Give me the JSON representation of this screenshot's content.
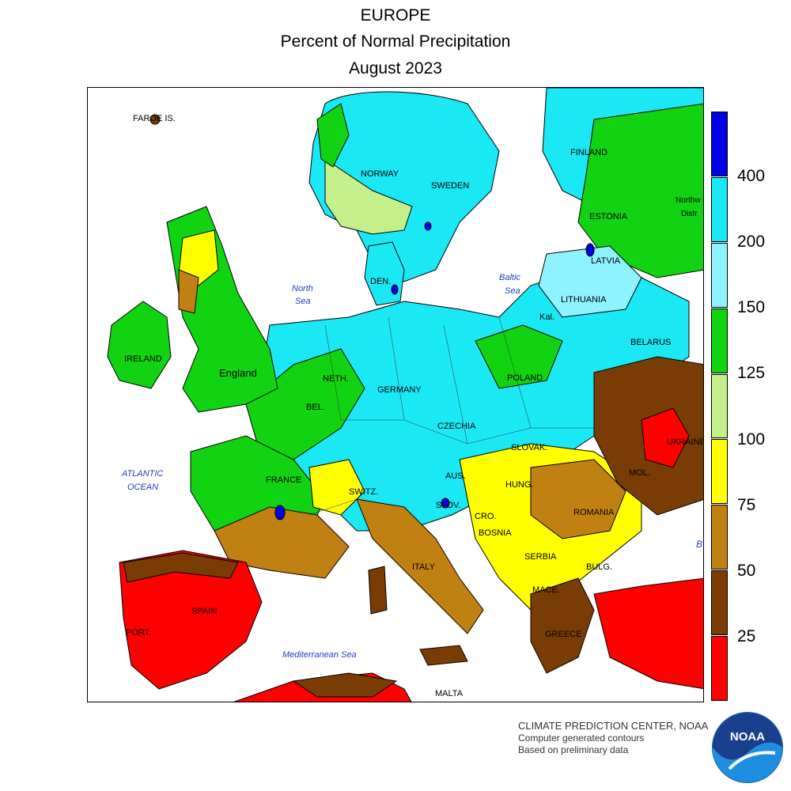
{
  "header": {
    "line1": "EUROPE",
    "line2": "Percent of Normal Precipitation",
    "line3": "August 2023"
  },
  "map": {
    "land_labels": [
      {
        "id": "faroe",
        "text": "FAROE IS."
      },
      {
        "id": "norway",
        "text": "NORWAY"
      },
      {
        "id": "sweden",
        "text": "SWEDEN"
      },
      {
        "id": "finland",
        "text": "FINLAND"
      },
      {
        "id": "estonia",
        "text": "ESTONIA"
      },
      {
        "id": "northwest-district",
        "text": "Northw"
      },
      {
        "id": "northwest-district-2",
        "text": "Distr"
      },
      {
        "id": "latvia",
        "text": "LATVIA"
      },
      {
        "id": "lithuania",
        "text": "LITHUANIA"
      },
      {
        "id": "kal",
        "text": "Kal."
      },
      {
        "id": "denmark",
        "text": "DEN."
      },
      {
        "id": "ireland",
        "text": "IRELAND"
      },
      {
        "id": "england",
        "text": "England"
      },
      {
        "id": "netherlands",
        "text": "NETH."
      },
      {
        "id": "belgium",
        "text": "BEL."
      },
      {
        "id": "germany",
        "text": "GERMANY"
      },
      {
        "id": "poland",
        "text": "POLAND"
      },
      {
        "id": "belarus",
        "text": "BELARUS"
      },
      {
        "id": "czechia",
        "text": "CZECHIA"
      },
      {
        "id": "slovakia",
        "text": "SLOVAK."
      },
      {
        "id": "ukraine",
        "text": "UKRAINE"
      },
      {
        "id": "moldova",
        "text": "MOL."
      },
      {
        "id": "france",
        "text": "FRANCE"
      },
      {
        "id": "switzerland",
        "text": "SWITZ."
      },
      {
        "id": "austria",
        "text": "AUS."
      },
      {
        "id": "hungary",
        "text": "HUNG."
      },
      {
        "id": "romania",
        "text": "ROMANIA"
      },
      {
        "id": "slovenia",
        "text": "SLOV."
      },
      {
        "id": "croatia",
        "text": "CRO."
      },
      {
        "id": "bosnia",
        "text": "BOSNIA"
      },
      {
        "id": "serbia",
        "text": "SERBIA"
      },
      {
        "id": "bulgaria",
        "text": "BULG."
      },
      {
        "id": "macedonia",
        "text": "MACE."
      },
      {
        "id": "greece",
        "text": "GREECE"
      },
      {
        "id": "italy",
        "text": "ITALY"
      },
      {
        "id": "spain",
        "text": "SPAIN"
      },
      {
        "id": "portugal",
        "text": "PORT."
      },
      {
        "id": "malta",
        "text": "MALTA"
      },
      {
        "id": "black-sea",
        "text": "B"
      }
    ],
    "sea_labels": [
      {
        "id": "north-sea-1",
        "text": "North"
      },
      {
        "id": "north-sea-2",
        "text": "Sea"
      },
      {
        "id": "baltic-sea-1",
        "text": "Baltic"
      },
      {
        "id": "baltic-sea-2",
        "text": "Sea"
      },
      {
        "id": "atlantic-1",
        "text": "ATLANTIC"
      },
      {
        "id": "atlantic-2",
        "text": "OCEAN"
      },
      {
        "id": "mediterranean",
        "text": "Mediterranean Sea"
      }
    ],
    "category_colors": {
      "lt25": "#ff0000",
      "25-50": "#7a3c05",
      "50-75": "#c08012",
      "75-100": "#ffff00",
      "100-125": "#c3f08a",
      "125-150": "#11d311",
      "150-200": "#8ff2ff",
      "200-400": "#1ae8f4",
      "gt400": "#0000e6"
    }
  },
  "legend": {
    "labels": [
      "400",
      "200",
      "150",
      "125",
      "100",
      "75",
      "50",
      "25"
    ],
    "colors": [
      "#0000e6",
      "#1ae8f4",
      "#8ff2ff",
      "#11d311",
      "#c3f08a",
      "#ffff00",
      "#c08012",
      "#7a3c05",
      "#ff0000"
    ]
  },
  "credits": {
    "line1": "CLIMATE PREDICTION CENTER, NOAA",
    "line2": "Computer generated contours",
    "line3": "Based on preliminary data",
    "logo_text": "NOAA"
  }
}
